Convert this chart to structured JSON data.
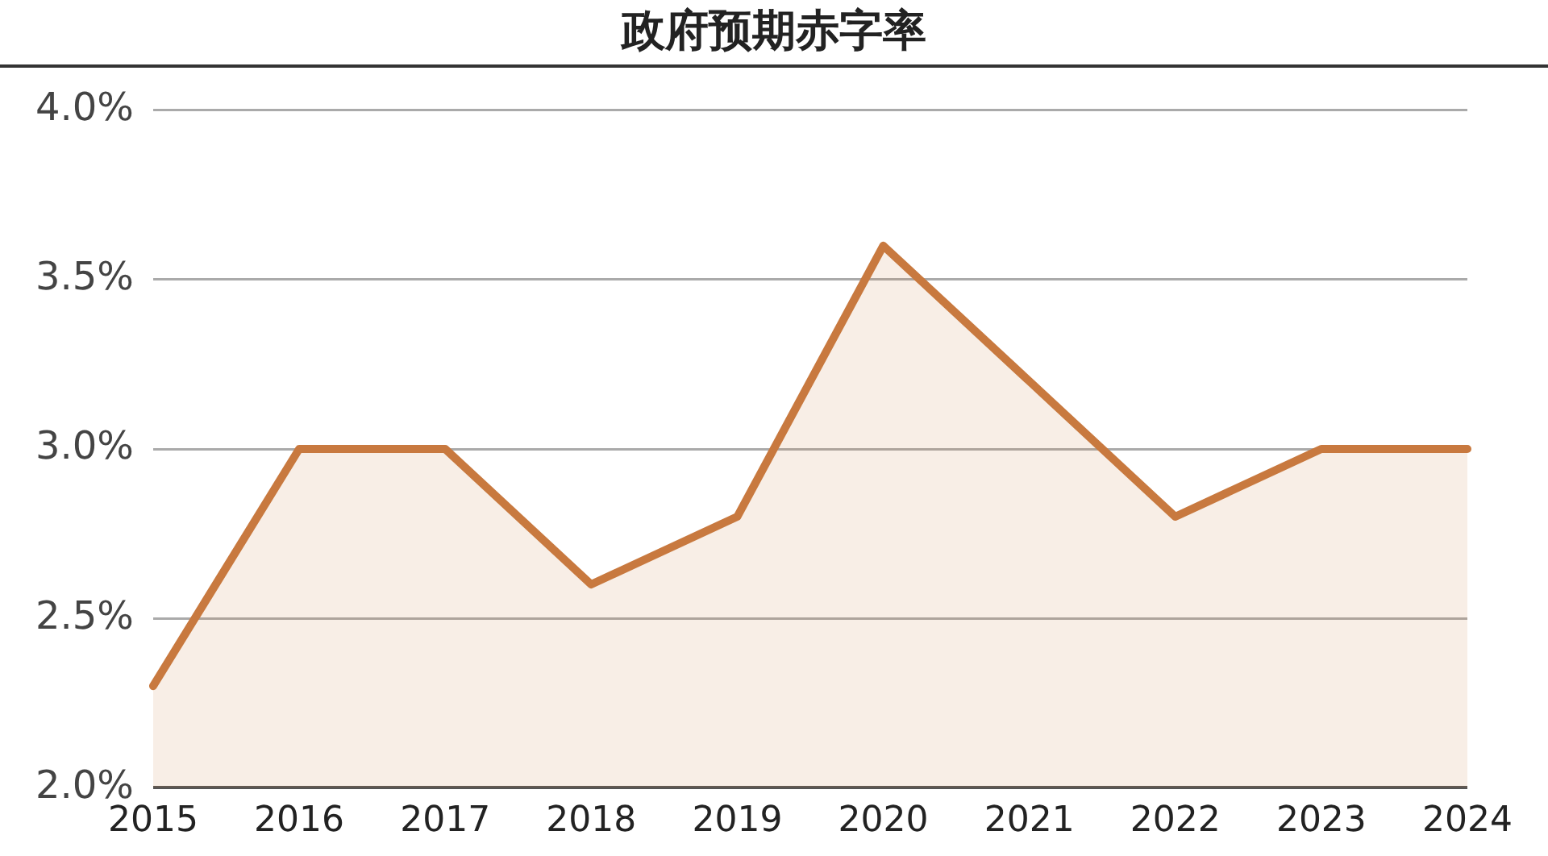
{
  "chart_data": {
    "type": "area",
    "title": "政府预期赤字率",
    "categories": [
      "2015",
      "2016",
      "2017",
      "2018",
      "2019",
      "2020",
      "2021",
      "2022",
      "2023",
      "2024"
    ],
    "series": [
      {
        "color": "#c8793f",
        "values": [
          2.3,
          3.0,
          3.0,
          2.6,
          2.8,
          3.6,
          3.2,
          2.8,
          3.0,
          3.0
        ]
      }
    ],
    "ylim": [
      2.0,
      4.0
    ],
    "yticks": [
      {
        "value": 2.0,
        "label": "2.0%"
      },
      {
        "value": 2.5,
        "label": "2.5%"
      },
      {
        "value": 3.0,
        "label": "3.0%"
      },
      {
        "value": 3.5,
        "label": "3.5%"
      },
      {
        "value": 4.0,
        "label": "4.0%"
      }
    ],
    "grid": "y",
    "legend": false,
    "marker": "none",
    "line_style": "solid"
  }
}
